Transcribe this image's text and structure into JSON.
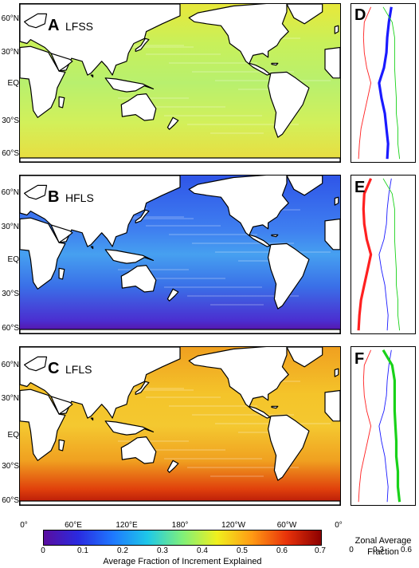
{
  "figure": {
    "map_panels": [
      {
        "letter": "A",
        "name": "LFSS",
        "palette": "lfss"
      },
      {
        "letter": "B",
        "name": "HFLS",
        "palette": "hfls"
      },
      {
        "letter": "C",
        "name": "LFLS",
        "palette": "lfls"
      }
    ],
    "zonal_panels": [
      {
        "letter": "D",
        "highlight": "blue"
      },
      {
        "letter": "E",
        "highlight": "red"
      },
      {
        "letter": "F",
        "highlight": "green"
      }
    ],
    "lat_ticks": [
      "60°N",
      "30°N",
      "EQ",
      "30°S",
      "60°S"
    ],
    "lon_ticks": [
      "0°",
      "60°E",
      "120°E",
      "180°",
      "120°W",
      "60°W",
      "0°"
    ],
    "colorbar": {
      "ticks": [
        "0",
        "0.1",
        "0.2",
        "0.3",
        "0.4",
        "0.5",
        "0.6",
        "0.7"
      ],
      "label": "Average Fraction of Increment Explained",
      "range": [
        0,
        0.7
      ],
      "colormap": [
        "#5a0d9e",
        "#2a2ae0",
        "#1e78ff",
        "#1ec8e8",
        "#7ff07a",
        "#f0f01e",
        "#ff9a14",
        "#e8320a",
        "#8c0000"
      ]
    },
    "zonal_axis": {
      "ticks": [
        "0",
        "0.3",
        "0.6"
      ],
      "label_line1": "Zonal Average",
      "label_line2": "Fraction",
      "range": [
        0,
        0.7
      ]
    },
    "line_colors": {
      "LFSS": "#1a1aff",
      "HFLS": "#ff2020",
      "LFLS": "#19d219"
    }
  },
  "chart_data": {
    "type": "line",
    "title": "",
    "xlabel": "Zonal Average Fraction",
    "ylabel": "",
    "xlim": [
      0,
      0.7
    ],
    "ylim": [
      -78,
      78
    ],
    "y": [
      75,
      60,
      45,
      30,
      15,
      0,
      -15,
      -30,
      -45,
      -60,
      -75
    ],
    "series": [
      {
        "name": "LFSS",
        "values": [
          0.45,
          0.42,
          0.4,
          0.39,
          0.36,
          0.3,
          0.33,
          0.37,
          0.39,
          0.41,
          0.4
        ]
      },
      {
        "name": "HFLS",
        "values": [
          0.2,
          0.12,
          0.11,
          0.12,
          0.15,
          0.2,
          0.16,
          0.12,
          0.08,
          0.06,
          0.05
        ]
      },
      {
        "name": "LFLS",
        "values": [
          0.35,
          0.46,
          0.49,
          0.49,
          0.49,
          0.5,
          0.51,
          0.51,
          0.53,
          0.53,
          0.55
        ]
      }
    ]
  }
}
